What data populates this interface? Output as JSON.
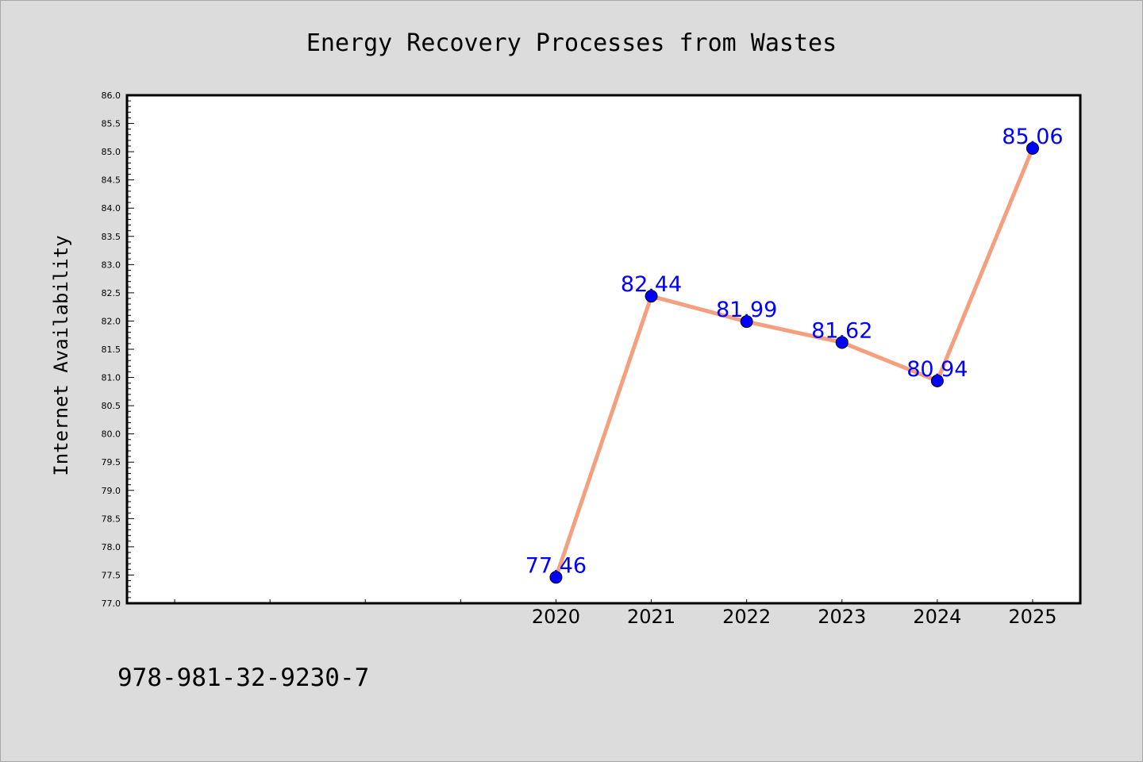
{
  "chart_data": {
    "type": "line",
    "title": "Energy Recovery Processes from Wastes",
    "xlabel": "",
    "ylabel": "Internet Availability",
    "categories": [
      "2020",
      "2021",
      "2022",
      "2023",
      "2024",
      "2025"
    ],
    "series": [
      {
        "values": [
          77.46,
          82.44,
          81.99,
          81.62,
          80.94,
          85.06
        ]
      }
    ],
    "data_labels": [
      "77.46",
      "82.44",
      "81.99",
      "81.62",
      "80.94",
      "85.06"
    ],
    "ylim": [
      77.0,
      86.0
    ],
    "yticks": [
      "77.0",
      "77.5",
      "78.0",
      "78.5",
      "79.0",
      "79.5",
      "80.0",
      "80.5",
      "81.0",
      "81.5",
      "82.0",
      "82.5",
      "83.0",
      "83.5",
      "84.0",
      "84.5",
      "85.0",
      "85.5",
      "86.0"
    ],
    "x_slot_count": 10,
    "x_first_slot": 4,
    "line_color": "#f4a07e",
    "marker_color": "#0000ff",
    "label_color": "#0000ff",
    "grid": false,
    "legend": "none"
  },
  "footer_text": "978-981-32-9230-7"
}
